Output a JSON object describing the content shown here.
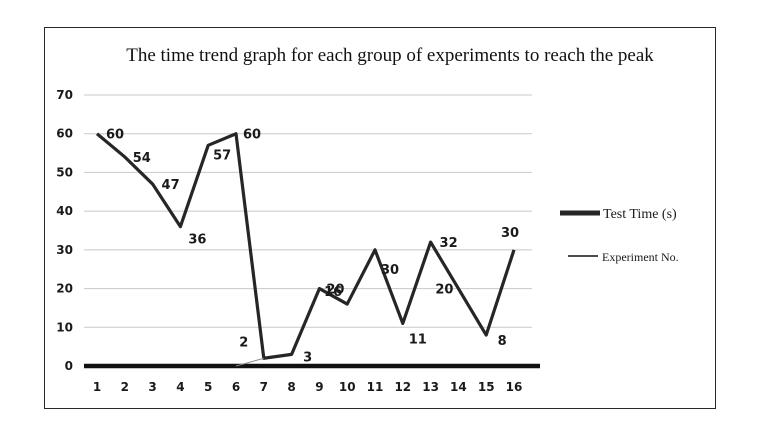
{
  "chart_data": {
    "type": "line",
    "title": "The time trend graph for each group of experiments to reach the peak",
    "xlabel": "",
    "ylabel": "",
    "categories": [
      "1",
      "2",
      "3",
      "4",
      "5",
      "6",
      "7",
      "8",
      "9",
      "10",
      "11",
      "12",
      "13",
      "14",
      "15",
      "16"
    ],
    "ylim": [
      0,
      70
    ],
    "yticks": [
      0,
      10,
      20,
      30,
      40,
      50,
      60,
      70
    ],
    "grid": true,
    "legend_position": "right",
    "series": [
      {
        "name": "Test Time (s)",
        "values": [
          60,
          54,
          47,
          36,
          57,
          60,
          2,
          3,
          20,
          16,
          30,
          11,
          32,
          20,
          8,
          30
        ],
        "labels": [
          "60",
          "54",
          "47",
          "36",
          "57",
          "60",
          "2",
          "3",
          "20",
          "16",
          "30",
          "11",
          "32",
          "20",
          "8",
          "30"
        ],
        "color": "#262626"
      },
      {
        "name": "Experiment No.",
        "values": [
          0,
          0,
          0,
          0,
          0,
          0,
          0,
          0,
          0,
          0,
          0,
          0,
          0,
          0,
          0,
          0
        ],
        "color": "#111111"
      }
    ]
  }
}
